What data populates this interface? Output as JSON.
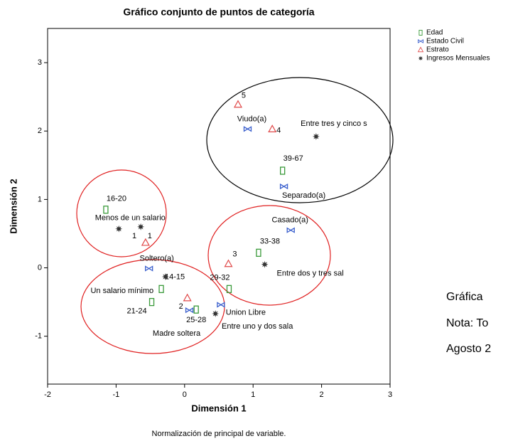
{
  "chart_data": {
    "type": "scatter",
    "title": "Gráfico conjunto de puntos de categoría",
    "x_label": "Dimensión 1",
    "y_label": "Dimensión 2",
    "footnote": "Normalización de principal de variable.",
    "xlim": [
      -2,
      3
    ],
    "ylim": [
      -1.7,
      3.5
    ],
    "xticks": [
      -2,
      -1,
      0,
      1,
      2,
      3
    ],
    "yticks": [
      -1,
      0,
      1,
      2,
      3
    ],
    "legend": "outside-right",
    "series": [
      {
        "name": "Edad",
        "color": "#3a9a3a",
        "marker": "rect",
        "labels": [
          "16-20",
          "39-67",
          "33-38",
          "29-32",
          "14-15",
          "21-24",
          "25-28"
        ],
        "x": [
          -1.15,
          1.43,
          1.08,
          0.65,
          -0.34,
          -0.48,
          0.17
        ],
        "values": [
          0.85,
          1.42,
          0.22,
          -0.31,
          -0.31,
          -0.5,
          -0.61
        ]
      },
      {
        "name": "Estado Civil",
        "color": "#3a5fcd",
        "marker": "bowtie",
        "labels": [
          "Viudo(a)",
          "Separado(a)",
          "Casado(a)",
          "Soltero(a)",
          "Union Libre",
          "Madre soltera"
        ],
        "x": [
          0.92,
          1.45,
          1.55,
          -0.52,
          0.53,
          0.07
        ],
        "values": [
          2.03,
          1.19,
          0.55,
          -0.01,
          -0.54,
          -0.62
        ]
      },
      {
        "name": "Estrato",
        "color": "#e04848",
        "marker": "triangle",
        "labels": [
          "5",
          "4",
          "3",
          "1",
          "2"
        ],
        "x": [
          0.78,
          1.28,
          0.64,
          -0.57,
          0.04
        ],
        "values": [
          2.39,
          2.03,
          0.06,
          0.37,
          -0.44
        ]
      },
      {
        "name": "Ingresos Mensuales",
        "color": "#333333",
        "marker": "star",
        "labels": [
          "Entre tres y cinco s",
          "Menos de un salario",
          "1",
          "Un salario mínimo",
          "Entre uno y dos sala",
          "Entre dos y tres sal"
        ],
        "x": [
          1.92,
          -0.96,
          -0.64,
          -0.28,
          0.45,
          1.17
        ],
        "values": [
          1.92,
          0.57,
          0.6,
          -0.13,
          -0.67,
          0.05
        ]
      }
    ]
  },
  "side_text": [
    "Gráfica",
    "Nota: To",
    "Agosto 2"
  ]
}
